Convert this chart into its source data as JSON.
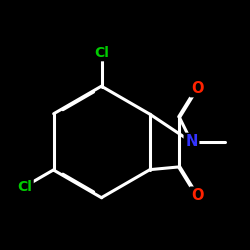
{
  "bg_color": "#000000",
  "atom_colors": {
    "C": "#ffffff",
    "N": "#3333ff",
    "O": "#ff2200",
    "Cl": "#00cc00"
  },
  "bond_color": "#ffffff",
  "bond_width": 2.2,
  "dbo": 0.018,
  "figsize": [
    2.5,
    2.5
  ],
  "dpi": 100
}
